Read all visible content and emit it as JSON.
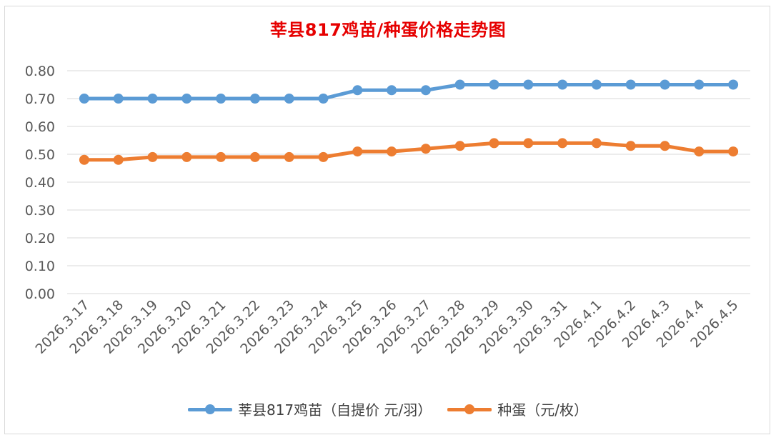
{
  "chart_data": {
    "type": "line",
    "title": "莘县817鸡苗/种蛋价格走势图",
    "categories": [
      "2026.3.17",
      "2026.3.18",
      "2026.3.19",
      "2026.3.20",
      "2026.3.21",
      "2026.3.22",
      "2026.3.23",
      "2026.3.24",
      "2026.3.25",
      "2026.3.26",
      "2026.3.27",
      "2026.3.28",
      "2026.3.29",
      "2026.3.30",
      "2026.3.31",
      "2026.4.1",
      "2026.4.2",
      "2026.4.3",
      "2026.4.4",
      "2026.4.5"
    ],
    "series": [
      {
        "name": "莘县817鸡苗（自提价 元/羽）",
        "color": "#5b9bd5",
        "values": [
          0.7,
          0.7,
          0.7,
          0.7,
          0.7,
          0.7,
          0.7,
          0.7,
          0.73,
          0.73,
          0.73,
          0.75,
          0.75,
          0.75,
          0.75,
          0.75,
          0.75,
          0.75,
          0.75,
          0.75
        ]
      },
      {
        "name": "种蛋（元/枚）",
        "color": "#ed7d31",
        "values": [
          0.48,
          0.48,
          0.49,
          0.49,
          0.49,
          0.49,
          0.49,
          0.49,
          0.51,
          0.51,
          0.52,
          0.53,
          0.54,
          0.54,
          0.54,
          0.54,
          0.53,
          0.53,
          0.51,
          0.51
        ]
      }
    ],
    "yticks": [
      "0.00",
      "0.10",
      "0.20",
      "0.30",
      "0.40",
      "0.50",
      "0.60",
      "0.70",
      "0.80"
    ],
    "ylim": [
      0,
      0.8
    ],
    "grid": true,
    "legend_position": "bottom"
  }
}
